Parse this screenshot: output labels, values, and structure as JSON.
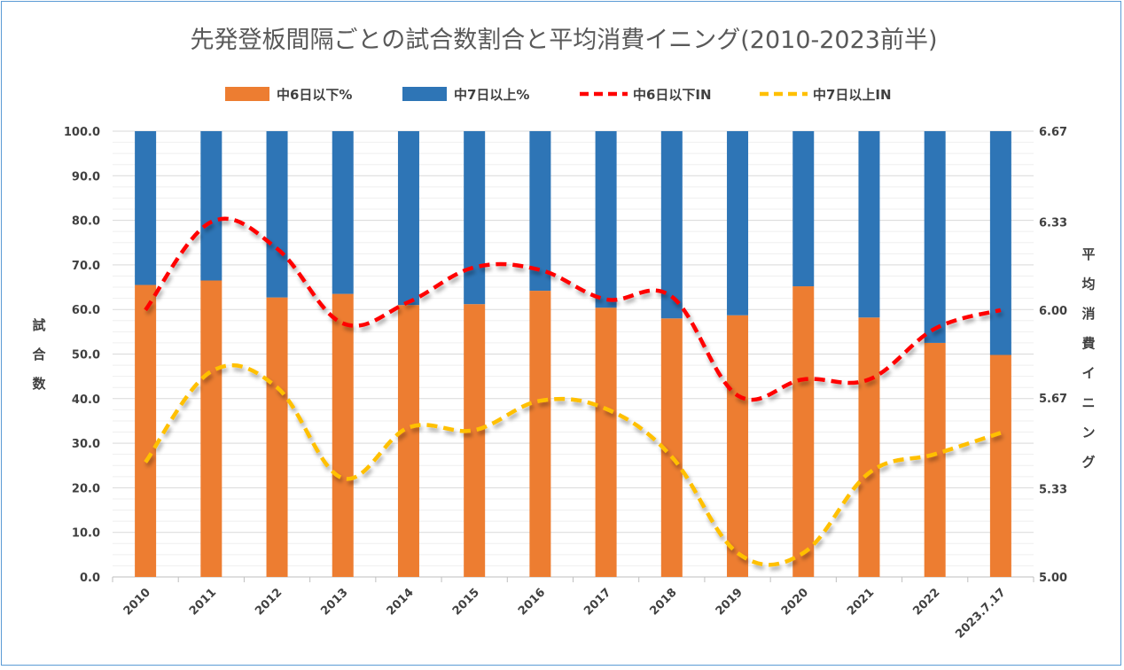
{
  "chart_data": {
    "type": "bar",
    "stacked": true,
    "title": "先発登板間隔ごとの試合数割合と平均消費イニング(2010-2023前半)",
    "categories": [
      "2010",
      "2011",
      "2012",
      "2013",
      "2014",
      "2015",
      "2016",
      "2017",
      "2018",
      "2019",
      "2020",
      "2021",
      "2022",
      "2023.7.17"
    ],
    "ylabel": "試合数",
    "y2label": "平均消費イニング",
    "ylim": [
      0,
      100
    ],
    "y2lim": [
      5.0,
      6.67
    ],
    "yticks": [
      "0.0",
      "10.0",
      "20.0",
      "30.0",
      "40.0",
      "50.0",
      "60.0",
      "70.0",
      "80.0",
      "90.0",
      "100.0"
    ],
    "y2ticks": [
      "5.00",
      "5.33",
      "5.67",
      "6.00",
      "6.33",
      "6.67"
    ],
    "legend_position": "top",
    "grid": true,
    "series": [
      {
        "name": "中6日以下%",
        "kind": "bar",
        "axis": "left",
        "color": "#ed7d31",
        "values": [
          65.5,
          66.5,
          62.7,
          63.5,
          61.0,
          61.2,
          64.2,
          60.4,
          58.0,
          58.7,
          65.2,
          58.2,
          52.5,
          49.8
        ]
      },
      {
        "name": "中7日以上%",
        "kind": "bar",
        "axis": "left",
        "color": "#2e75b6",
        "values": [
          34.5,
          33.5,
          37.3,
          36.5,
          39.0,
          38.8,
          35.8,
          39.6,
          42.0,
          41.3,
          34.8,
          41.8,
          47.5,
          50.2
        ]
      },
      {
        "name": "中6日以下IN",
        "kind": "line",
        "axis": "right",
        "color": "#ff0000",
        "dashed": true,
        "values": [
          6.0,
          6.33,
          6.23,
          5.95,
          6.03,
          6.16,
          6.15,
          6.04,
          6.05,
          5.68,
          5.74,
          5.74,
          5.93,
          6.0
        ]
      },
      {
        "name": "中7日以上IN",
        "kind": "line",
        "axis": "right",
        "color": "#ffc000",
        "dashed": true,
        "values": [
          5.43,
          5.77,
          5.71,
          5.37,
          5.56,
          5.55,
          5.66,
          5.63,
          5.45,
          5.09,
          5.09,
          5.39,
          5.46,
          5.54
        ]
      }
    ]
  }
}
